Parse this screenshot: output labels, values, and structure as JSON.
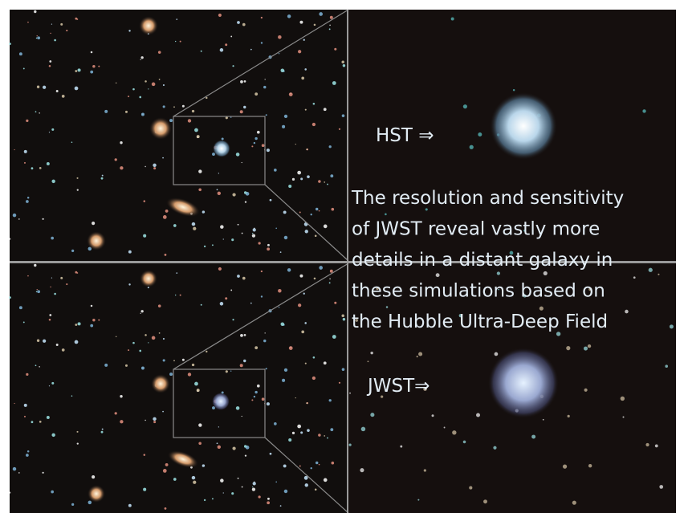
{
  "labels": {
    "hst": "HST ⇒",
    "jwst": "JWST⇒"
  },
  "caption": {
    "lines": [
      "The resolution and sensitivity",
      "of JWST reveal vastly more",
      "details in a distant galaxy in",
      "these simulations based on",
      "the Hubble Ultra-Deep Field"
    ]
  }
}
